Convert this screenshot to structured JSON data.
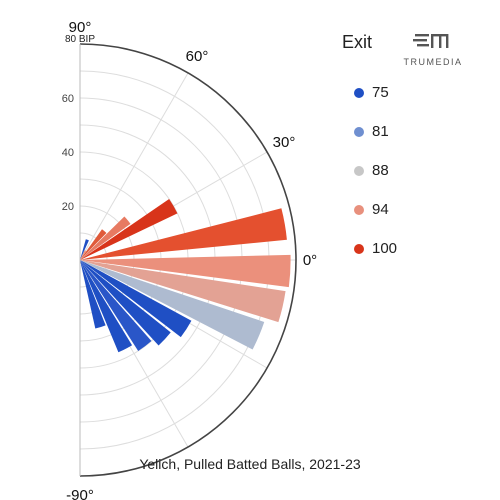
{
  "chart_data": {
    "type": "polar-bar",
    "radial_axis_title": "80 BIP",
    "radial_ticks": [
      20,
      40,
      60
    ],
    "radial_max": 80,
    "angle_labels": [
      "90°",
      "60°",
      "30°",
      "0°",
      "-90°"
    ],
    "legend_title": "Exit",
    "legend": [
      {
        "label": "75",
        "color": "#1f4fc4"
      },
      {
        "label": "81",
        "color": "#6f8fd0"
      },
      {
        "label": "88",
        "color": "#c7c7c7"
      },
      {
        "label": "94",
        "color": "#e8907d"
      },
      {
        "label": "100",
        "color": "#d8341a"
      }
    ],
    "bars": [
      {
        "angle": 70,
        "value": 8,
        "color": "#1f4fc4"
      },
      {
        "angle": 60,
        "value": 4,
        "color": "#e8907d"
      },
      {
        "angle": 50,
        "value": 14,
        "color": "#e05a3a"
      },
      {
        "angle": 40,
        "value": 23,
        "color": "#e77a62"
      },
      {
        "angle": 30,
        "value": 40,
        "color": "#d8341a"
      },
      {
        "angle": 10,
        "value": 77,
        "color": "#e4502f"
      },
      {
        "angle": -3,
        "value": 78,
        "color": "#eb907c"
      },
      {
        "angle": -13,
        "value": 77,
        "color": "#e3a294"
      },
      {
        "angle": -23,
        "value": 72,
        "color": "#aebbd0"
      },
      {
        "angle": -33,
        "value": 47,
        "color": "#1f4fc4"
      },
      {
        "angle": -43,
        "value": 43,
        "color": "#1f4fc4"
      },
      {
        "angle": -53,
        "value": 40,
        "color": "#2a56c8"
      },
      {
        "angle": -63,
        "value": 37,
        "color": "#1f4fc4"
      },
      {
        "angle": -73,
        "value": 26,
        "color": "#1f4fc4"
      }
    ]
  },
  "brand": {
    "name": "TRUMEDIA"
  },
  "footer": {
    "text": "Yelich, Pulled Batted Balls, 2021-23"
  }
}
